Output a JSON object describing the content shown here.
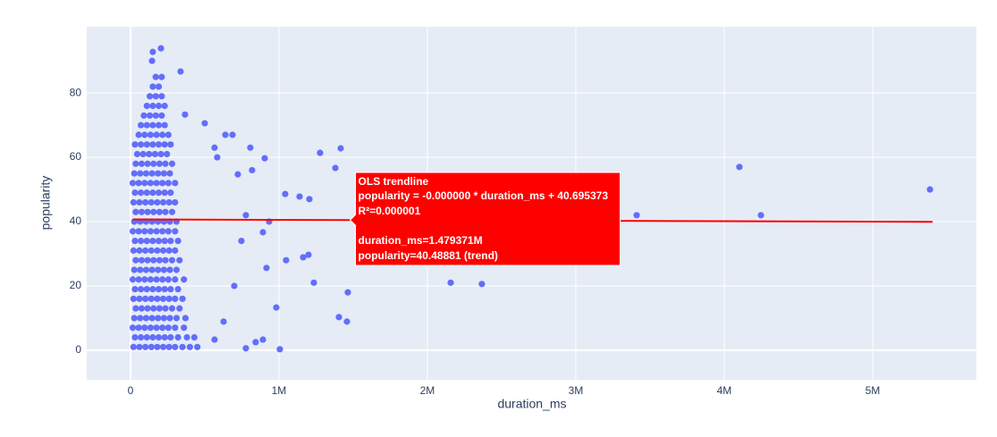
{
  "chart_data": {
    "type": "scatter",
    "xlabel": "duration_ms",
    "ylabel": "popularity",
    "x": [
      20000,
      60000,
      100000,
      140000,
      180000,
      220000,
      260000,
      300000,
      350000,
      400000,
      450000,
      30000,
      70000,
      110000,
      150000,
      190000,
      230000,
      270000,
      320000,
      380000,
      430000,
      15000,
      55000,
      95000,
      135000,
      175000,
      215000,
      255000,
      300000,
      360000,
      25000,
      65000,
      105000,
      145000,
      185000,
      225000,
      265000,
      310000,
      370000,
      35000,
      75000,
      115000,
      155000,
      195000,
      235000,
      280000,
      330000,
      20000,
      60000,
      100000,
      140000,
      180000,
      220000,
      260000,
      300000,
      350000,
      30000,
      70000,
      110000,
      150000,
      190000,
      230000,
      270000,
      320000,
      15000,
      55000,
      95000,
      135000,
      175000,
      215000,
      255000,
      300000,
      360000,
      25000,
      65000,
      105000,
      145000,
      185000,
      225000,
      265000,
      310000,
      35000,
      75000,
      115000,
      155000,
      195000,
      235000,
      280000,
      330000,
      20000,
      60000,
      100000,
      140000,
      180000,
      220000,
      260000,
      300000,
      30000,
      70000,
      110000,
      150000,
      190000,
      230000,
      270000,
      320000,
      15000,
      55000,
      95000,
      135000,
      175000,
      215000,
      255000,
      300000,
      25000,
      65000,
      105000,
      145000,
      185000,
      225000,
      265000,
      310000,
      35000,
      75000,
      115000,
      155000,
      195000,
      235000,
      280000,
      20000,
      60000,
      100000,
      140000,
      180000,
      220000,
      260000,
      300000,
      30000,
      70000,
      110000,
      150000,
      190000,
      230000,
      270000,
      15000,
      55000,
      95000,
      135000,
      175000,
      215000,
      255000,
      300000,
      25000,
      65000,
      105000,
      145000,
      185000,
      225000,
      265000,
      35000,
      75000,
      115000,
      155000,
      195000,
      235000,
      280000,
      45000,
      85000,
      125000,
      165000,
      205000,
      245000,
      30000,
      70000,
      110000,
      150000,
      190000,
      230000,
      270000,
      55000,
      95000,
      135000,
      175000,
      215000,
      255000,
      70000,
      110000,
      150000,
      190000,
      230000,
      90000,
      130000,
      170000,
      210000,
      110000,
      150000,
      190000,
      230000,
      130000,
      170000,
      210000,
      150000,
      190000,
      170000,
      210000,
      5386000,
      4102000,
      4247000,
      3410000,
      2157000,
      2367000,
      1416000,
      1277000,
      1380000,
      1464000,
      1404000,
      1458000,
      1235000,
      1199000,
      1163000,
      1048000,
      1006000,
      982000,
      1205000,
      1139000,
      1042000,
      934000,
      904000,
      807000,
      819000,
      892000,
      916000,
      892000,
      843000,
      687000,
      639000,
      500000,
      367000,
      337000,
      205000,
      150000,
      145000,
      566000,
      584000,
      723000,
      777000,
      747000,
      699000,
      627000,
      566000,
      777000
    ],
    "values": [
      1,
      1,
      1,
      1,
      1,
      1,
      1,
      1,
      1,
      1,
      1,
      4,
      4,
      4,
      4,
      4,
      4,
      4,
      4,
      4,
      4,
      7,
      7,
      7,
      7,
      7,
      7,
      7,
      7,
      7,
      10,
      10,
      10,
      10,
      10,
      10,
      10,
      10,
      10,
      13,
      13,
      13,
      13,
      13,
      13,
      13,
      13,
      16,
      16,
      16,
      16,
      16,
      16,
      16,
      16,
      16,
      19,
      19,
      19,
      19,
      19,
      19,
      19,
      19,
      22,
      22,
      22,
      22,
      22,
      22,
      22,
      22,
      22,
      25,
      25,
      25,
      25,
      25,
      25,
      25,
      25,
      28,
      28,
      28,
      28,
      28,
      28,
      28,
      28,
      31,
      31,
      31,
      31,
      31,
      31,
      31,
      31,
      34,
      34,
      34,
      34,
      34,
      34,
      34,
      34,
      37,
      37,
      37,
      37,
      37,
      37,
      37,
      37,
      40,
      40,
      40,
      40,
      40,
      40,
      40,
      40,
      43,
      43,
      43,
      43,
      43,
      43,
      43,
      46,
      46,
      46,
      46,
      46,
      46,
      46,
      46,
      49,
      49,
      49,
      49,
      49,
      49,
      49,
      52,
      52,
      52,
      52,
      52,
      52,
      52,
      52,
      55,
      55,
      55,
      55,
      55,
      55,
      55,
      58,
      58,
      58,
      58,
      58,
      58,
      58,
      61,
      61,
      61,
      61,
      61,
      61,
      64,
      64,
      64,
      64,
      64,
      64,
      64,
      67,
      67,
      67,
      67,
      67,
      67,
      70,
      70,
      70,
      70,
      70,
      73,
      73,
      73,
      73,
      76,
      76,
      76,
      76,
      79,
      79,
      79,
      82,
      82,
      85,
      85,
      50,
      57,
      42,
      42,
      21,
      20.6,
      62.8,
      61.4,
      56.7,
      18,
      10.3,
      8.9,
      21,
      29.7,
      28.9,
      28,
      0.3,
      13.3,
      47,
      47.8,
      48.6,
      40,
      59.7,
      63,
      56,
      36.7,
      25.6,
      3.3,
      2.5,
      67,
      67,
      70.6,
      73.3,
      86.7,
      93.9,
      92.8,
      90,
      63,
      60,
      54.7,
      42,
      34,
      20,
      8.9,
      3.3,
      0.6
    ],
    "color": "#636efa",
    "trendline": {
      "x": [
        15000,
        5403500
      ],
      "values": [
        40.6933,
        39.94
      ],
      "color": "#ff0000"
    },
    "hover": {
      "x": 1479371,
      "y": 40.48881,
      "color": "#ff0000",
      "lines": [
        "OLS trendline",
        "popularity = -0.000000 * duration_ms + 40.695373",
        "R²=0.000001",
        "duration_ms=1.479371M",
        "popularity=40.48881 (trend)"
      ]
    },
    "xlim": [
      -295000,
      5699000
    ],
    "ylim": [
      -9.2,
      100.6
    ],
    "xticks": [
      0,
      {
        "value": 1000000,
        "label": "1M"
      },
      {
        "value": 2000000,
        "label": "2M"
      },
      {
        "value": 3000000,
        "label": "3M"
      },
      {
        "value": 4000000,
        "label": "4M"
      },
      {
        "value": 5000000,
        "label": "5M"
      }
    ],
    "yticks": [
      0,
      20,
      40,
      60,
      80
    ],
    "grid": true
  }
}
